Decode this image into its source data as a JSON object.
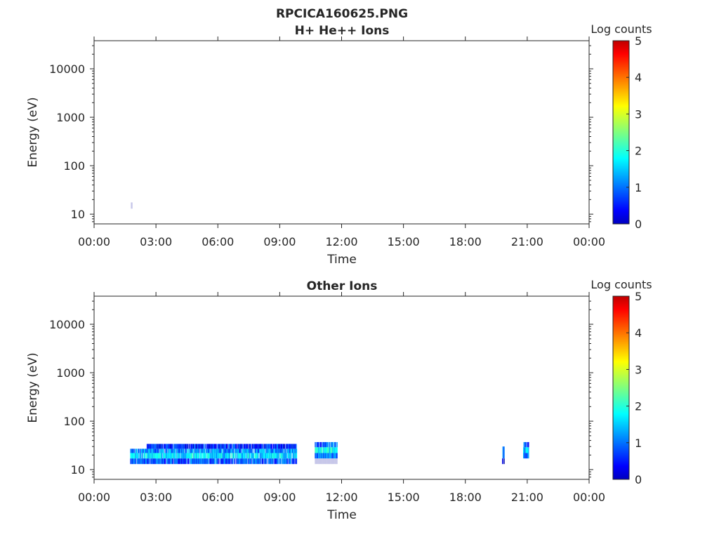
{
  "title_line1": "RPCICA160625.PNG",
  "chart_data": [
    {
      "type": "heatmap",
      "title": "H+ He++ Ions",
      "xlabel": "Time",
      "ylabel": "Energy (eV)",
      "xlim_hours": [
        0,
        24
      ],
      "ylim": [
        6.3,
        38000
      ],
      "yscale": "log",
      "xticks": [
        "00:00",
        "03:00",
        "06:00",
        "09:00",
        "12:00",
        "15:00",
        "18:00",
        "21:00",
        "00:00"
      ],
      "yticks": [
        {
          "v": 10,
          "label": "10"
        },
        {
          "v": 100,
          "label": "100"
        },
        {
          "v": 1000,
          "label": "1000"
        },
        {
          "v": 10000,
          "label": "10000"
        }
      ],
      "colorbar": {
        "label": "Log counts",
        "range": [
          0,
          5
        ],
        "ticks": [
          "0",
          "1",
          "2",
          "3",
          "4",
          "5"
        ]
      },
      "cells": [
        {
          "t0": 1.78,
          "t1": 1.84,
          "e0": 13,
          "e1": 17.5,
          "logc": 0.3
        }
      ]
    },
    {
      "type": "heatmap",
      "title": "Other Ions",
      "xlabel": "Time",
      "ylabel": "Energy (eV)",
      "xlim_hours": [
        0,
        24
      ],
      "ylim": [
        6.3,
        38000
      ],
      "yscale": "log",
      "xticks": [
        "00:00",
        "03:00",
        "06:00",
        "09:00",
        "12:00",
        "15:00",
        "18:00",
        "21:00",
        "00:00"
      ],
      "yticks": [
        {
          "v": 10,
          "label": "10"
        },
        {
          "v": 100,
          "label": "100"
        },
        {
          "v": 1000,
          "label": "1000"
        },
        {
          "v": 10000,
          "label": "10000"
        }
      ],
      "colorbar": {
        "label": "Log counts",
        "range": [
          0,
          5
        ],
        "ticks": [
          "0",
          "1",
          "2",
          "3",
          "4",
          "5"
        ]
      },
      "cells": [
        {
          "t0": 1.75,
          "t1": 9.8,
          "e0": 13,
          "e1": 17,
          "logc": 1.0
        },
        {
          "t0": 1.75,
          "t1": 9.8,
          "e0": 17,
          "e1": 22,
          "logc": 1.7
        },
        {
          "t0": 1.75,
          "t1": 9.8,
          "e0": 22,
          "e1": 27,
          "logc": 1.3
        },
        {
          "t0": 2.55,
          "t1": 9.8,
          "e0": 27,
          "e1": 34,
          "logc": 0.8
        },
        {
          "t0": 10.7,
          "t1": 11.8,
          "e0": 13,
          "e1": 17,
          "logc": 0.4
        },
        {
          "t0": 10.7,
          "t1": 11.8,
          "e0": 17,
          "e1": 22,
          "logc": 1.2
        },
        {
          "t0": 10.7,
          "t1": 11.8,
          "e0": 22,
          "e1": 29,
          "logc": 1.8
        },
        {
          "t0": 10.7,
          "t1": 11.8,
          "e0": 29,
          "e1": 37,
          "logc": 1.1
        },
        {
          "t0": 19.78,
          "t1": 19.88,
          "e0": 13,
          "e1": 17,
          "logc": 0.5
        },
        {
          "t0": 19.78,
          "t1": 19.88,
          "e0": 17,
          "e1": 30,
          "logc": 1.2
        },
        {
          "t0": 20.8,
          "t1": 21.05,
          "e0": 17,
          "e1": 22,
          "logc": 1.2
        },
        {
          "t0": 20.8,
          "t1": 21.05,
          "e0": 22,
          "e1": 29,
          "logc": 1.6
        },
        {
          "t0": 20.8,
          "t1": 21.05,
          "e0": 29,
          "e1": 37,
          "logc": 1.0
        }
      ]
    }
  ]
}
